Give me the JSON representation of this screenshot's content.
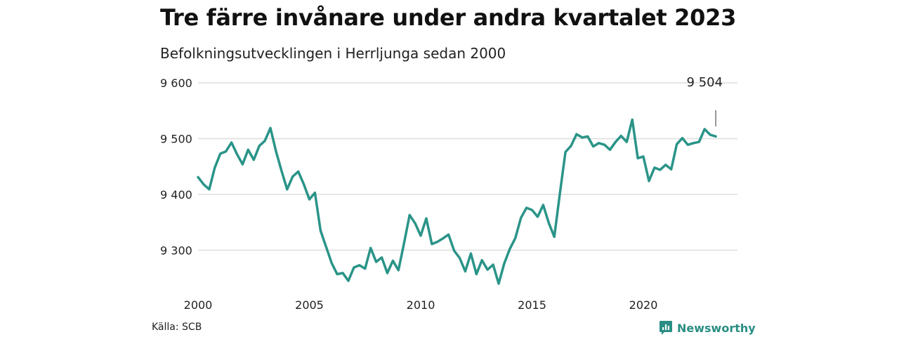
{
  "title": "Tre färre invånare under andra kvartalet 2023",
  "subtitle": "Befolkningsutvecklingen i Herrljunga sedan 2000",
  "source": "Källa: SCB",
  "brand": {
    "name": "Newsworthy",
    "icon": "newsworthy-chart-icon",
    "color": "#2a8e84"
  },
  "chart_data": {
    "type": "line",
    "title": "Tre färre invånare under andra kvartalet 2023",
    "subtitle": "Befolkningsutvecklingen i Herrljunga sedan 2000",
    "xlabel": "",
    "ylabel": "",
    "xlim": [
      2000,
      2023.5
    ],
    "ylim": [
      9240,
      9600
    ],
    "yticks": [
      9300,
      9400,
      9500,
      9600
    ],
    "ytick_labels": [
      "9 300",
      "9 400",
      "9 500",
      "9 600"
    ],
    "xticks": [
      2000,
      2005,
      2010,
      2015,
      2020
    ],
    "xtick_labels": [
      "2000",
      "2005",
      "2010",
      "2015",
      "2020"
    ],
    "grid": true,
    "line_color": "#2a9488",
    "annotation": {
      "x": 2023.25,
      "y": 9504,
      "text": "9 504"
    },
    "series": [
      {
        "values": [
          [
            2000.0,
            9431
          ],
          [
            2000.25,
            9418
          ],
          [
            2000.5,
            9409
          ],
          [
            2000.75,
            9448
          ],
          [
            2001.0,
            9473
          ],
          [
            2001.25,
            9477
          ],
          [
            2001.5,
            9493
          ],
          [
            2001.75,
            9472
          ],
          [
            2002.0,
            9454
          ],
          [
            2002.25,
            9480
          ],
          [
            2002.5,
            9462
          ],
          [
            2002.75,
            9487
          ],
          [
            2003.0,
            9496
          ],
          [
            2003.25,
            9519
          ],
          [
            2003.5,
            9477
          ],
          [
            2003.75,
            9442
          ],
          [
            2004.0,
            9409
          ],
          [
            2004.25,
            9432
          ],
          [
            2004.5,
            9441
          ],
          [
            2004.75,
            9418
          ],
          [
            2005.0,
            9391
          ],
          [
            2005.25,
            9403
          ],
          [
            2005.5,
            9335
          ],
          [
            2005.75,
            9306
          ],
          [
            2006.0,
            9277
          ],
          [
            2006.25,
            9257
          ],
          [
            2006.5,
            9259
          ],
          [
            2006.75,
            9245
          ],
          [
            2007.0,
            9269
          ],
          [
            2007.25,
            9273
          ],
          [
            2007.5,
            9267
          ],
          [
            2007.75,
            9304
          ],
          [
            2008.0,
            9279
          ],
          [
            2008.25,
            9287
          ],
          [
            2008.5,
            9259
          ],
          [
            2008.75,
            9281
          ],
          [
            2009.0,
            9264
          ],
          [
            2009.25,
            9312
          ],
          [
            2009.5,
            9363
          ],
          [
            2009.75,
            9348
          ],
          [
            2010.0,
            9326
          ],
          [
            2010.25,
            9357
          ],
          [
            2010.5,
            9311
          ],
          [
            2010.75,
            9315
          ],
          [
            2011.0,
            9321
          ],
          [
            2011.25,
            9328
          ],
          [
            2011.5,
            9299
          ],
          [
            2011.75,
            9286
          ],
          [
            2012.0,
            9262
          ],
          [
            2012.25,
            9294
          ],
          [
            2012.5,
            9257
          ],
          [
            2012.75,
            9282
          ],
          [
            2013.0,
            9265
          ],
          [
            2013.25,
            9274
          ],
          [
            2013.5,
            9240
          ],
          [
            2013.75,
            9276
          ],
          [
            2014.0,
            9302
          ],
          [
            2014.25,
            9322
          ],
          [
            2014.5,
            9358
          ],
          [
            2014.75,
            9376
          ],
          [
            2015.0,
            9372
          ],
          [
            2015.25,
            9360
          ],
          [
            2015.5,
            9381
          ],
          [
            2015.75,
            9349
          ],
          [
            2016.0,
            9324
          ],
          [
            2016.25,
            9402
          ],
          [
            2016.5,
            9476
          ],
          [
            2016.75,
            9487
          ],
          [
            2017.0,
            9508
          ],
          [
            2017.25,
            9502
          ],
          [
            2017.5,
            9504
          ],
          [
            2017.75,
            9486
          ],
          [
            2018.0,
            9492
          ],
          [
            2018.25,
            9489
          ],
          [
            2018.5,
            9480
          ],
          [
            2018.75,
            9494
          ],
          [
            2019.0,
            9505
          ],
          [
            2019.25,
            9494
          ],
          [
            2019.5,
            9534
          ],
          [
            2019.75,
            9465
          ],
          [
            2020.0,
            9468
          ],
          [
            2020.25,
            9424
          ],
          [
            2020.5,
            9448
          ],
          [
            2020.75,
            9444
          ],
          [
            2021.0,
            9453
          ],
          [
            2021.25,
            9445
          ],
          [
            2021.5,
            9490
          ],
          [
            2021.75,
            9501
          ],
          [
            2022.0,
            9489
          ],
          [
            2022.25,
            9492
          ],
          [
            2022.5,
            9494
          ],
          [
            2022.75,
            9517
          ],
          [
            2023.0,
            9507
          ],
          [
            2023.25,
            9504
          ]
        ]
      }
    ]
  }
}
